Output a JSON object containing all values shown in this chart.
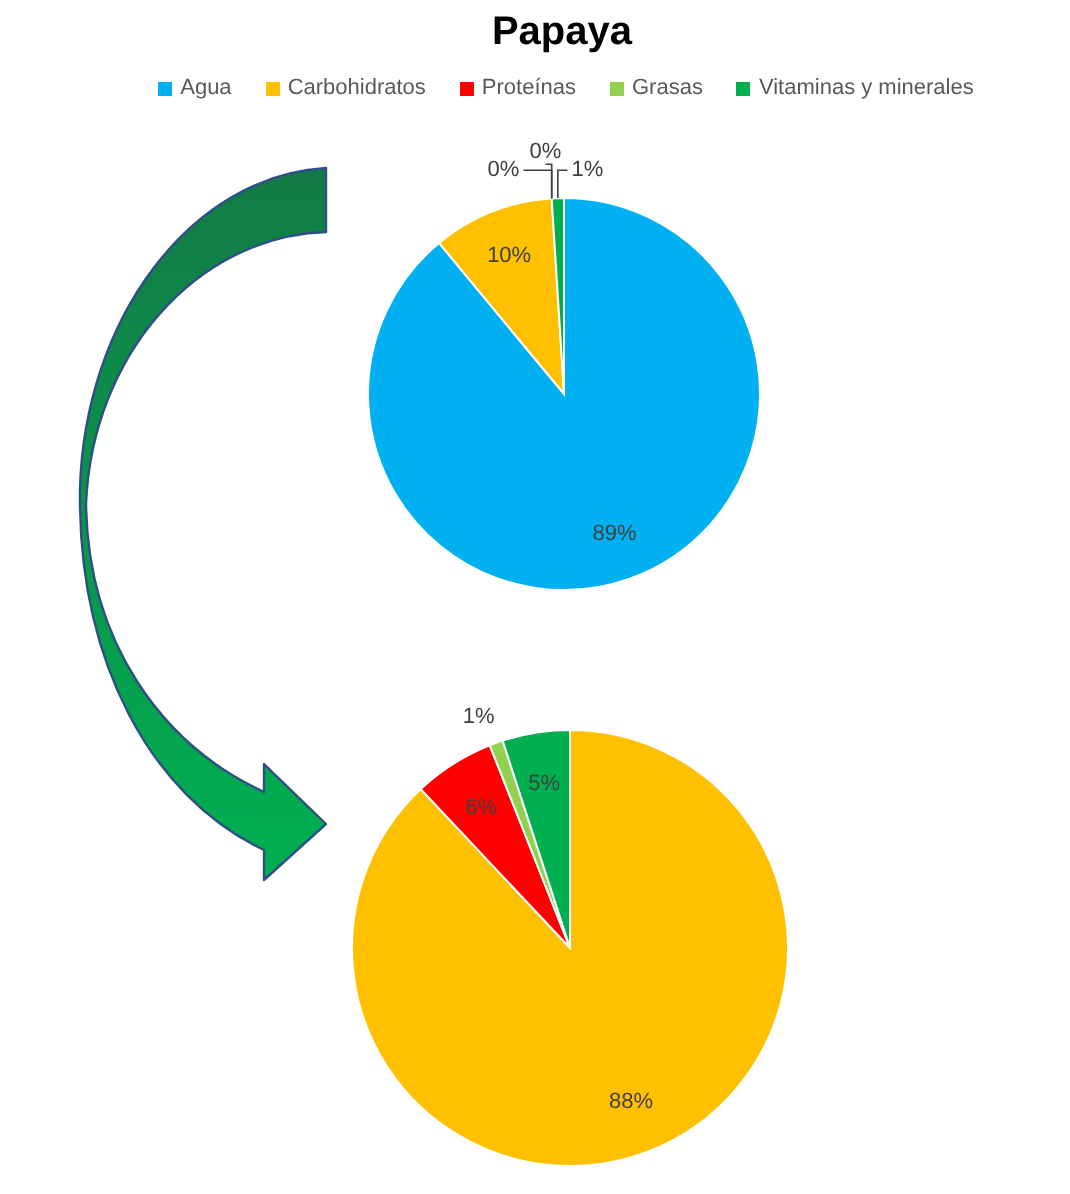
{
  "chart_data": [
    {
      "type": "pie",
      "title": "Papaya",
      "categories": [
        "Agua",
        "Carbohidratos",
        "Proteínas",
        "Grasas",
        "Vitaminas y minerales"
      ],
      "values": [
        89,
        10,
        0,
        0,
        1
      ],
      "colors": [
        "#00b0f0",
        "#ffc000",
        "#ff0000",
        "#92d050",
        "#00b050"
      ],
      "value_labels": [
        "89%",
        "10%",
        "0%",
        "0%",
        "1%"
      ],
      "legend": "top"
    },
    {
      "type": "pie",
      "categories": [
        null,
        null,
        null,
        null
      ],
      "values": [
        88,
        6,
        1,
        5
      ],
      "colors": [
        "#ffc000",
        "#ff0000",
        "#92d050",
        "#00b050"
      ],
      "value_labels": [
        "88%",
        "6%",
        "1%",
        "5%"
      ]
    }
  ]
}
